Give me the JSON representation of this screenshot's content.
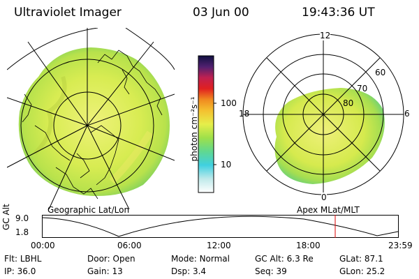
{
  "header": {
    "title": "Ultraviolet Imager",
    "date": "03 Jun 00",
    "time": "19:43:36 UT"
  },
  "colorbar": {
    "label": "photon cm⁻²s⁻¹",
    "ticks": [
      "100",
      "10"
    ]
  },
  "left_map": {
    "caption": "Geographic Lat/Lon"
  },
  "right_map": {
    "caption": "Apex MLat/MLT",
    "mlt_labels": {
      "top": "12",
      "right": "6",
      "bottom": "0",
      "left": "18"
    },
    "lat_labels": [
      "60",
      "70",
      "80"
    ]
  },
  "timeline": {
    "ylabel": "GC Alt",
    "y_ticks": [
      "9.0",
      "1.8"
    ],
    "x_ticks": [
      "00:00",
      "06:00",
      "12:00",
      "18:00",
      "23:59"
    ],
    "marker_color": "#dd0000"
  },
  "info": {
    "row1": [
      {
        "k": "Flt:",
        "v": "LBHL"
      },
      {
        "k": "Door:",
        "v": "Open"
      },
      {
        "k": "Mode:",
        "v": "Normal"
      },
      {
        "k": "GC Alt:",
        "v": "6.3 Re"
      },
      {
        "k": "GLat:",
        "v": "87.1"
      }
    ],
    "row2": [
      {
        "k": "IP:",
        "v": "36.0"
      },
      {
        "k": "Gain:",
        "v": "13"
      },
      {
        "k": "Dsp:",
        "v": "3.4"
      },
      {
        "k": "Seq:",
        "v": "39"
      },
      {
        "k": "GLon:",
        "v": "25.2"
      }
    ]
  },
  "colors": {
    "aurora_main": "#d9ec4e",
    "aurora_light": "#f0f080",
    "aurora_green": "#8ed85a",
    "marker": "#dd0000"
  }
}
